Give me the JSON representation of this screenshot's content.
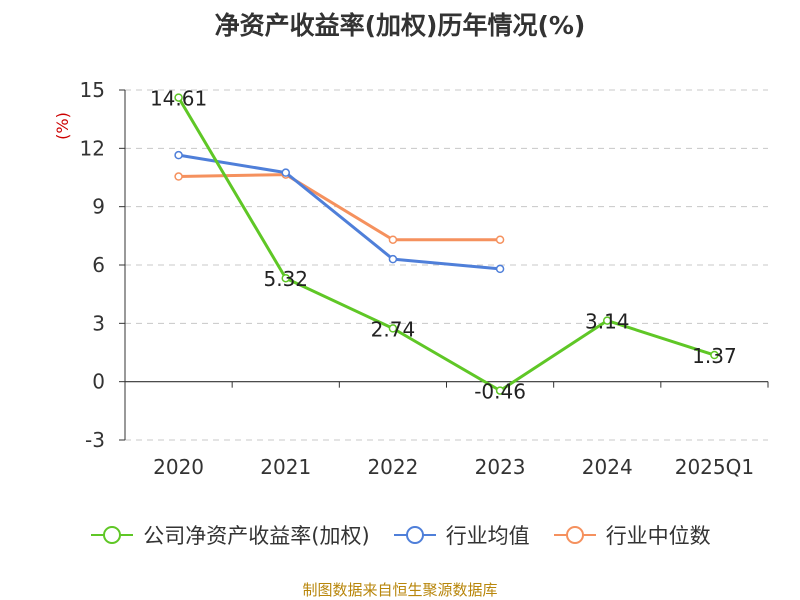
{
  "chart_data": {
    "type": "line",
    "title": "净资产收益率(加权)历年情况(%)",
    "ylabel": "(%)",
    "xlabel": "",
    "categories": [
      "2020",
      "2021",
      "2022",
      "2023",
      "2024",
      "2025Q1"
    ],
    "ylim": [
      -3,
      15
    ],
    "yticks": [
      -3,
      0,
      3,
      6,
      9,
      12,
      15
    ],
    "grid": true,
    "legend_position": "bottom",
    "series": [
      {
        "name": "公司净资产收益率(加权)",
        "color": "#5fc726",
        "values": [
          14.61,
          5.32,
          2.74,
          -0.46,
          3.14,
          1.37
        ],
        "labels": [
          "14.61",
          "5.32",
          "2.74",
          "-0.46",
          "3.14",
          "1.37"
        ]
      },
      {
        "name": "行业均值",
        "color": "#4f7fd9",
        "values": [
          11.65,
          10.75,
          6.3,
          5.8,
          null,
          null
        ]
      },
      {
        "name": "行业中位数",
        "color": "#f5915e",
        "values": [
          10.55,
          10.65,
          7.3,
          7.3,
          null,
          null
        ]
      }
    ]
  },
  "source": "制图数据来自恒生聚源数据库"
}
